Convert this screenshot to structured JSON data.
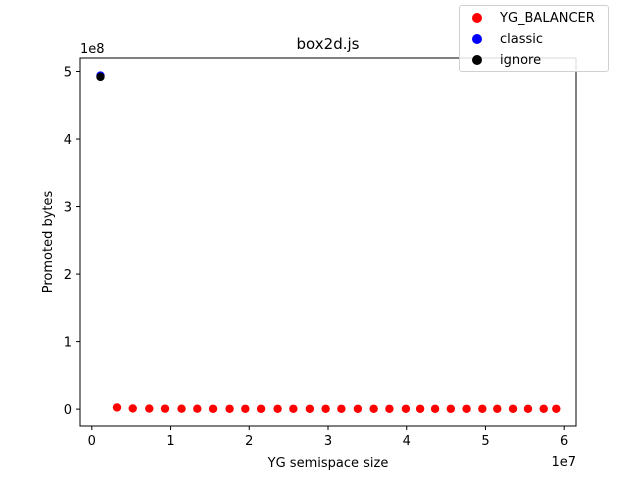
{
  "chart_data": {
    "type": "scatter",
    "title": "box2d.js",
    "xlabel": "YG semispace size",
    "ylabel": "Promoted bytes",
    "x_offset_label": "1e7",
    "y_offset_label": "1e8",
    "xlim": [
      -1500000,
      61500000
    ],
    "ylim": [
      -25000000,
      520000000
    ],
    "x_ticks": [
      0,
      10000000,
      20000000,
      30000000,
      40000000,
      50000000,
      60000000
    ],
    "x_tick_labels": [
      "0",
      "1",
      "2",
      "3",
      "4",
      "5",
      "6"
    ],
    "y_ticks": [
      0,
      100000000,
      200000000,
      300000000,
      400000000,
      500000000
    ],
    "y_tick_labels": [
      "0",
      "1",
      "2",
      "3",
      "4",
      "5"
    ],
    "grid": false,
    "legend_position": "upper-right",
    "series": [
      {
        "name": "YG_BALANCER",
        "color": "#ff0000",
        "x": [
          3200000,
          5200000,
          7300000,
          9300000,
          11400000,
          13400000,
          15400000,
          17500000,
          19500000,
          21500000,
          23600000,
          25600000,
          27700000,
          29700000,
          31700000,
          33800000,
          35800000,
          37800000,
          39900000,
          41700000,
          43600000,
          45600000,
          47600000,
          49600000,
          51500000,
          53500000,
          55400000,
          57400000,
          59000000
        ],
        "y": [
          2500000,
          1000000,
          800000,
          700000,
          600000,
          600000,
          500000,
          500000,
          500000,
          500000,
          500000,
          500000,
          500000,
          500000,
          500000,
          500000,
          500000,
          500000,
          500000,
          500000,
          500000,
          500000,
          500000,
          500000,
          500000,
          500000,
          500000,
          500000,
          500000
        ]
      },
      {
        "name": "classic",
        "color": "#0000ff",
        "x": [
          1100000
        ],
        "y": [
          494000000
        ]
      },
      {
        "name": "ignore",
        "color": "#000000",
        "x": [
          1100000
        ],
        "y": [
          492000000
        ]
      }
    ]
  }
}
